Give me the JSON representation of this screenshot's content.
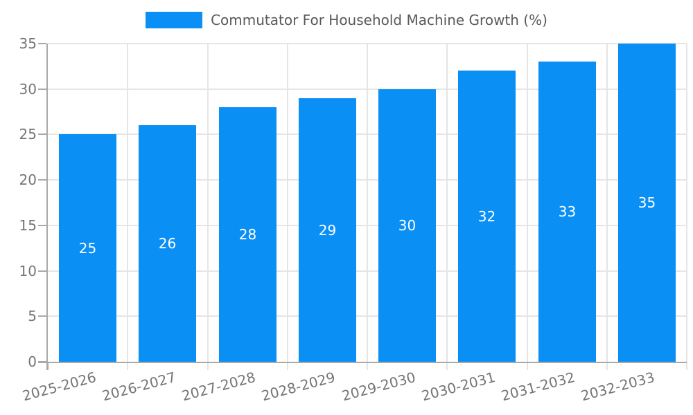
{
  "legend": {
    "label": "Commutator For Household Machine Growth (%)"
  },
  "chart_data": {
    "type": "bar",
    "title": "Commutator For Household Machine Growth (%)",
    "categories": [
      "2025-2026",
      "2026-2027",
      "2027-2028",
      "2028-2029",
      "2029-2030",
      "2030-2031",
      "2031-2032",
      "2032-2033"
    ],
    "values": [
      25,
      26,
      28,
      29,
      30,
      32,
      33,
      35
    ],
    "xlabel": "",
    "ylabel": "",
    "ylim": [
      0,
      35
    ],
    "yticks": [
      0,
      5,
      10,
      15,
      20,
      25,
      30,
      35
    ],
    "grid": true,
    "legend_position": "top-center",
    "value_labels_position": "inside-center"
  },
  "colors": {
    "bar": "#0a8ff5",
    "grid": "#e5e5e5",
    "axis": "#a9a9a9",
    "tick_text": "#757575",
    "legend_text": "#595959",
    "value_text": "#ffffff",
    "background": "#ffffff"
  }
}
